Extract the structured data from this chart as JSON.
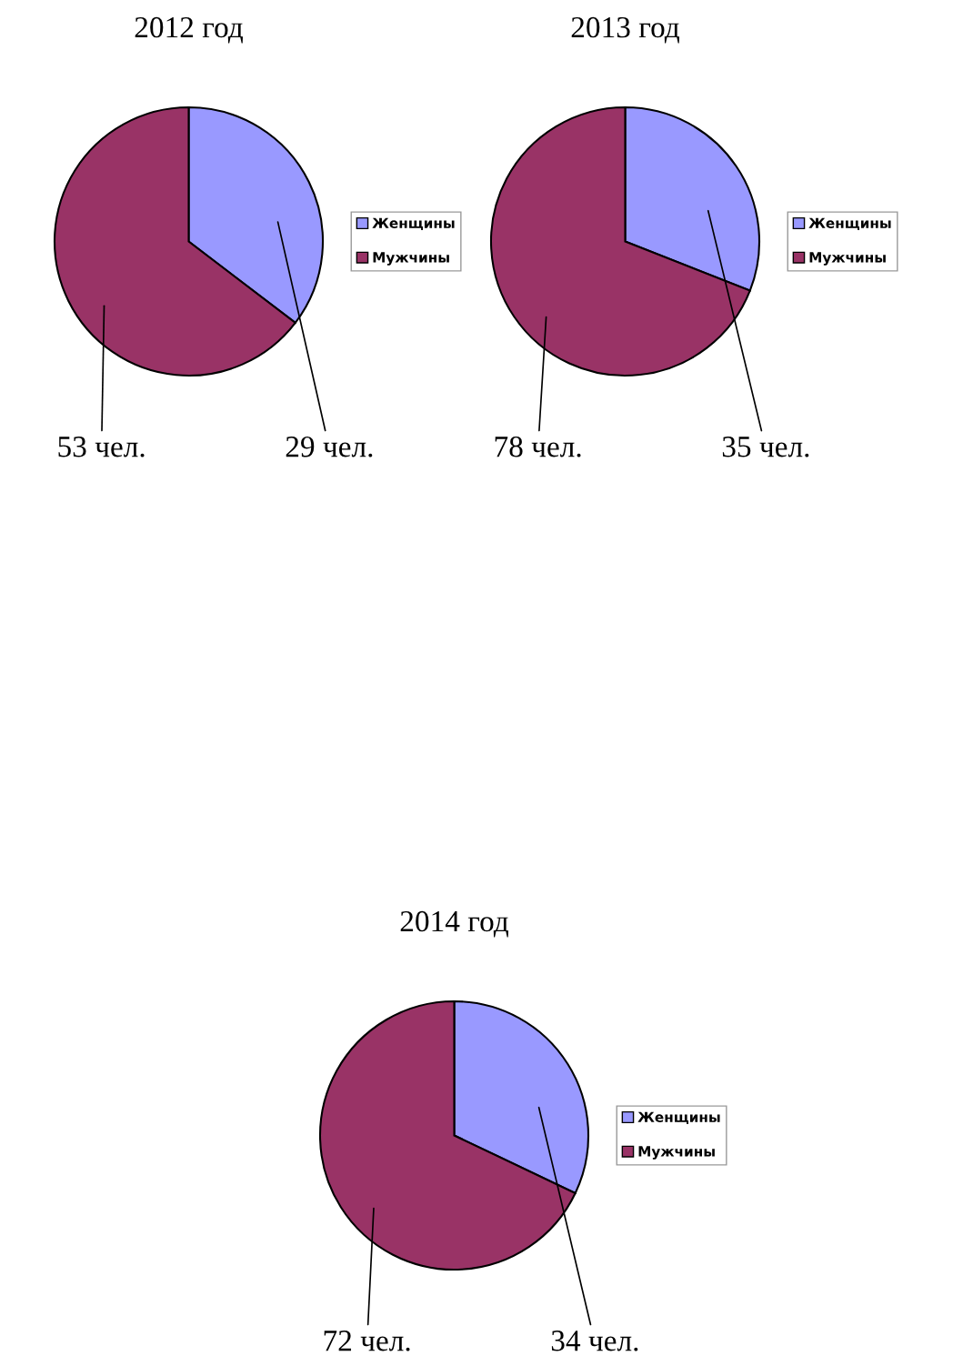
{
  "chart_data": [
    {
      "type": "pie",
      "title": "2012 год",
      "categories": [
        "Женщины",
        "Мужчины"
      ],
      "values": [
        29,
        53
      ],
      "colors": [
        "#9999ff",
        "#993366"
      ],
      "value_labels": [
        "29 чел.",
        "53 чел."
      ],
      "legend": "right"
    },
    {
      "type": "pie",
      "title": "2013 год",
      "categories": [
        "Женщины",
        "Мужчины"
      ],
      "values": [
        35,
        78
      ],
      "colors": [
        "#9999ff",
        "#993366"
      ],
      "value_labels": [
        "35 чел.",
        "78 чел."
      ],
      "legend": "right"
    },
    {
      "type": "pie",
      "title": "2014 год",
      "categories": [
        "Женщины",
        "Мужчины"
      ],
      "values": [
        34,
        72
      ],
      "colors": [
        "#9999ff",
        "#993366"
      ],
      "value_labels": [
        "34 чел.",
        "72 чел."
      ],
      "legend": "right"
    }
  ]
}
